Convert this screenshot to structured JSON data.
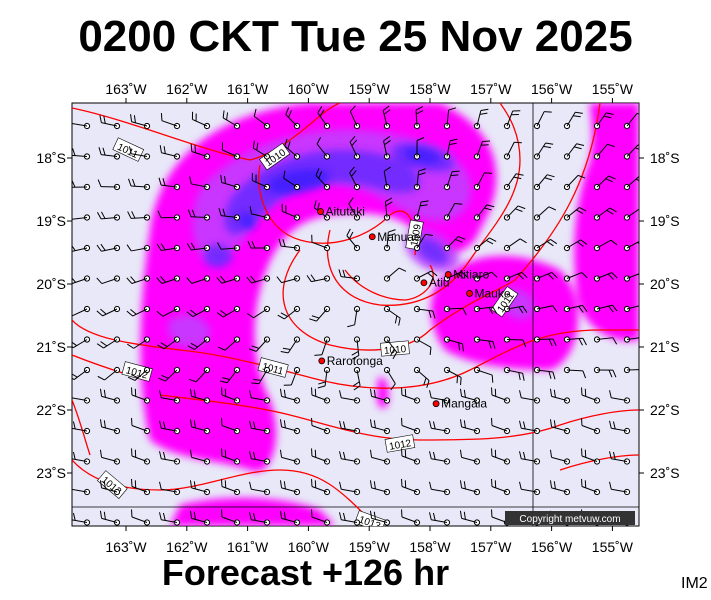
{
  "title": "0200 CKT Tue 25 Nov 2025",
  "forecast_label": "Forecast +126 hr",
  "image_code": "IM2",
  "copyright": "Copyright metvuw.com",
  "lon_labels": [
    "163˚W",
    "162˚W",
    "161˚W",
    "160˚W",
    "159˚W",
    "158˚W",
    "157˚W",
    "156˚W",
    "155˚W"
  ],
  "lat_labels": [
    "18˚S",
    "19˚S",
    "20˚S",
    "21˚S",
    "22˚S",
    "23˚S"
  ],
  "places": [
    {
      "name": "Aitutaki",
      "lon": -159.8,
      "lat": -18.85
    },
    {
      "name": "Manuae",
      "lon": -158.95,
      "lat": -19.25
    },
    {
      "name": "Atiu",
      "lon": -158.1,
      "lat": -19.98
    },
    {
      "name": "Mitiaro",
      "lon": -157.7,
      "lat": -19.85
    },
    {
      "name": "Mauke",
      "lon": -157.35,
      "lat": -20.15
    },
    {
      "name": "Rarotonga",
      "lon": -159.78,
      "lat": -21.22
    },
    {
      "name": "Mangaia",
      "lon": -157.9,
      "lat": -21.9
    }
  ],
  "isobar_labels": [
    "1011",
    "1010",
    "1009",
    "1011",
    "1010",
    "1011",
    "1012",
    "1012",
    "1013",
    "1013"
  ],
  "colors": {
    "background": "#e8e8f8",
    "rain_light": "#ff00ff",
    "rain_mid": "#c040ff",
    "rain_heavy": "#6a2bff",
    "rain_core": "#3a1bff",
    "isobar": "#ff0000",
    "town": "#ff0000"
  }
}
